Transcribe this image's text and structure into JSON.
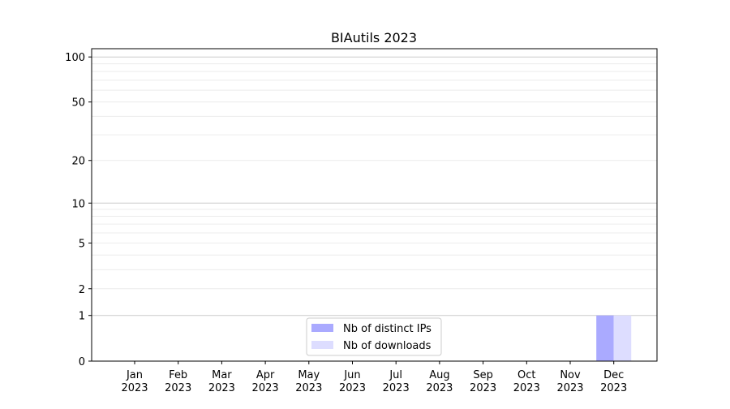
{
  "chart_data": {
    "type": "bar",
    "title": "BIAutils 2023",
    "xlabel": "",
    "ylabel": "",
    "y_scale": "symlog (log of 1+y)",
    "ylim": [
      0,
      113
    ],
    "y_ticks": [
      0,
      1,
      2,
      5,
      10,
      20,
      50,
      100
    ],
    "y_tick_labels": [
      "0",
      "1",
      "2",
      "5",
      "10",
      "20",
      "50",
      "100"
    ],
    "grid": "horizontal, major and minor",
    "legend_position": "bottom-center",
    "categories": [
      [
        "Jan",
        "2023"
      ],
      [
        "Feb",
        "2023"
      ],
      [
        "Mar",
        "2023"
      ],
      [
        "Apr",
        "2023"
      ],
      [
        "May",
        "2023"
      ],
      [
        "Jun",
        "2023"
      ],
      [
        "Jul",
        "2023"
      ],
      [
        "Aug",
        "2023"
      ],
      [
        "Sep",
        "2023"
      ],
      [
        "Oct",
        "2023"
      ],
      [
        "Nov",
        "2023"
      ],
      [
        "Dec",
        "2023"
      ]
    ],
    "series": [
      {
        "name": "Nb of distinct IPs",
        "color": "#aaaaff",
        "values": [
          0,
          0,
          0,
          0,
          0,
          0,
          0,
          0,
          0,
          0,
          0,
          1
        ]
      },
      {
        "name": "Nb of downloads",
        "color": "#ddddff",
        "values": [
          0,
          0,
          0,
          0,
          0,
          0,
          0,
          0,
          0,
          0,
          0,
          1
        ]
      }
    ]
  }
}
